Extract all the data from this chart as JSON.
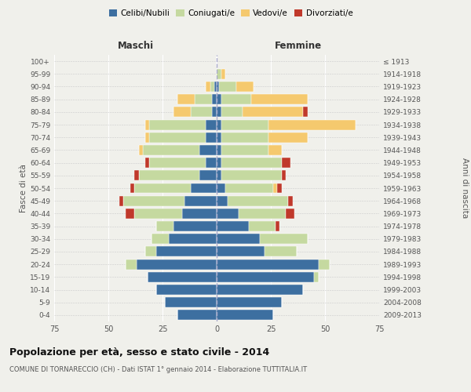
{
  "age_groups": [
    "0-4",
    "5-9",
    "10-14",
    "15-19",
    "20-24",
    "25-29",
    "30-34",
    "35-39",
    "40-44",
    "45-49",
    "50-54",
    "55-59",
    "60-64",
    "65-69",
    "70-74",
    "75-79",
    "80-84",
    "85-89",
    "90-94",
    "95-99",
    "100+"
  ],
  "birth_years": [
    "2009-2013",
    "2004-2008",
    "1999-2003",
    "1994-1998",
    "1989-1993",
    "1984-1988",
    "1979-1983",
    "1974-1978",
    "1969-1973",
    "1964-1968",
    "1959-1963",
    "1954-1958",
    "1949-1953",
    "1944-1948",
    "1939-1943",
    "1934-1938",
    "1929-1933",
    "1924-1928",
    "1919-1923",
    "1914-1918",
    "≤ 1913"
  ],
  "maschi": {
    "celibi": [
      18,
      24,
      28,
      32,
      37,
      28,
      22,
      20,
      16,
      15,
      12,
      8,
      5,
      8,
      5,
      5,
      2,
      2,
      1,
      0,
      0
    ],
    "coniugati": [
      0,
      0,
      0,
      0,
      5,
      5,
      8,
      8,
      22,
      28,
      26,
      28,
      26,
      26,
      26,
      26,
      10,
      8,
      2,
      0,
      0
    ],
    "vedovi": [
      0,
      0,
      0,
      0,
      0,
      0,
      0,
      0,
      0,
      0,
      0,
      0,
      0,
      2,
      2,
      2,
      8,
      8,
      2,
      0,
      0
    ],
    "divorziati": [
      0,
      0,
      0,
      0,
      0,
      0,
      0,
      0,
      4,
      2,
      2,
      2,
      2,
      0,
      0,
      0,
      0,
      0,
      0,
      0,
      0
    ]
  },
  "femmine": {
    "nubili": [
      26,
      30,
      40,
      45,
      47,
      22,
      20,
      15,
      10,
      5,
      4,
      2,
      2,
      2,
      2,
      2,
      2,
      2,
      1,
      0,
      0
    ],
    "coniugate": [
      0,
      0,
      0,
      2,
      5,
      15,
      22,
      12,
      22,
      28,
      22,
      28,
      28,
      22,
      22,
      22,
      10,
      14,
      8,
      2,
      0
    ],
    "vedove": [
      0,
      0,
      0,
      0,
      0,
      0,
      0,
      0,
      0,
      0,
      2,
      0,
      0,
      6,
      18,
      40,
      28,
      26,
      8,
      2,
      0
    ],
    "divorziate": [
      0,
      0,
      0,
      0,
      0,
      0,
      0,
      2,
      4,
      2,
      2,
      2,
      4,
      0,
      0,
      0,
      2,
      0,
      0,
      0,
      0
    ]
  },
  "colors": {
    "celibi": "#3d6fa0",
    "coniugati": "#c5d9a0",
    "vedovi": "#f5c96e",
    "divorziati": "#c0392b"
  },
  "xlim": 75,
  "title": "Popolazione per età, sesso e stato civile - 2014",
  "subtitle": "COMUNE DI TORNARECCIO (CH) - Dati ISTAT 1° gennaio 2014 - Elaborazione TUTTITALIA.IT",
  "ylabel_left": "Fasce di età",
  "ylabel_right": "Anni di nascita",
  "xlabel_left": "Maschi",
  "xlabel_right": "Femmine",
  "bg_color": "#f0f0eb"
}
